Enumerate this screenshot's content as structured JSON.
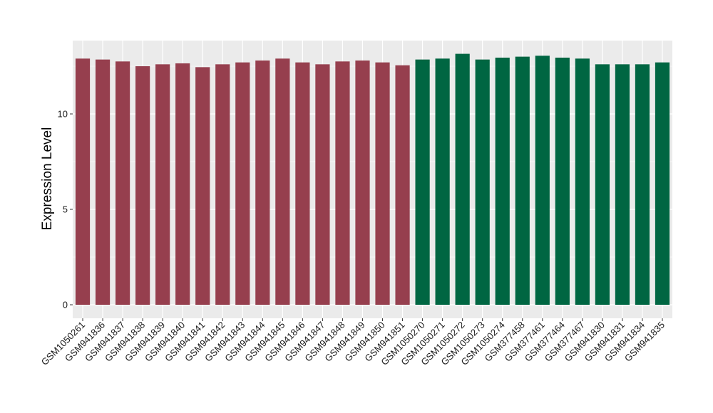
{
  "chart_data": {
    "type": "bar",
    "title": "",
    "xlabel": "",
    "ylabel": "Expression Level",
    "ylim": [
      0,
      13.6
    ],
    "yticks": [
      0,
      5,
      10
    ],
    "grid": true,
    "legend": "none",
    "colors": {
      "panel_bg": "#ebebeb",
      "grid": "#ffffff",
      "group_a": "#963f4e",
      "group_b": "#006642"
    },
    "categories": [
      "GSM1050261",
      "GSM941836",
      "GSM941837",
      "GSM941838",
      "GSM941839",
      "GSM941840",
      "GSM941841",
      "GSM941842",
      "GSM941843",
      "GSM941844",
      "GSM941845",
      "GSM941846",
      "GSM941847",
      "GSM941848",
      "GSM941849",
      "GSM941850",
      "GSM941851",
      "GSM1050270",
      "GSM1050271",
      "GSM1050272",
      "GSM1050273",
      "GSM1050274",
      "GSM377458",
      "GSM377461",
      "GSM377464",
      "GSM377467",
      "GSM941830",
      "GSM941831",
      "GSM941834",
      "GSM941835"
    ],
    "values": [
      12.9,
      12.85,
      12.75,
      12.5,
      12.6,
      12.65,
      12.45,
      12.6,
      12.7,
      12.8,
      12.9,
      12.7,
      12.6,
      12.75,
      12.8,
      12.7,
      12.55,
      12.85,
      12.9,
      13.15,
      12.85,
      12.95,
      13.0,
      13.05,
      12.95,
      12.9,
      12.6,
      12.6,
      12.6,
      12.7
    ],
    "groups": [
      "a",
      "a",
      "a",
      "a",
      "a",
      "a",
      "a",
      "a",
      "a",
      "a",
      "a",
      "a",
      "a",
      "a",
      "a",
      "a",
      "a",
      "b",
      "b",
      "b",
      "b",
      "b",
      "b",
      "b",
      "b",
      "b",
      "b",
      "b",
      "b",
      "b"
    ]
  }
}
